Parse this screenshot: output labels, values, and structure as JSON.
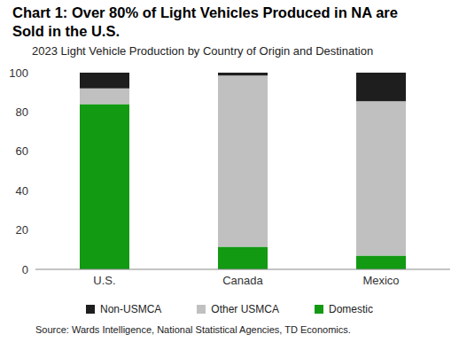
{
  "chart_data": {
    "type": "bar",
    "title": "Chart 1: Over 80% of Light Vehicles Produced in NA are Sold in the U.S.",
    "subtitle": "2023 Light Vehicle Production by Country of Origin and Destination",
    "source": "Source: Wards Intelligence, National Statistical Agencies, TD Economics.",
    "categories": [
      "U.S.",
      "Canada",
      "Mexico"
    ],
    "series": [
      {
        "name": "Domestic",
        "color": "#139a13",
        "values": [
          84,
          11.5,
          7
        ]
      },
      {
        "name": "Other USMCA",
        "color": "#c0c0c0",
        "values": [
          8,
          87,
          78.5
        ]
      },
      {
        "name": "Non-USMCA",
        "color": "#1e1e1e",
        "values": [
          8,
          1.5,
          14.5
        ]
      }
    ],
    "ylim": [
      0,
      100
    ],
    "yticks": [
      0,
      20,
      40,
      60,
      80,
      100
    ],
    "stacked": true,
    "grid": false,
    "legend": "bottom"
  }
}
